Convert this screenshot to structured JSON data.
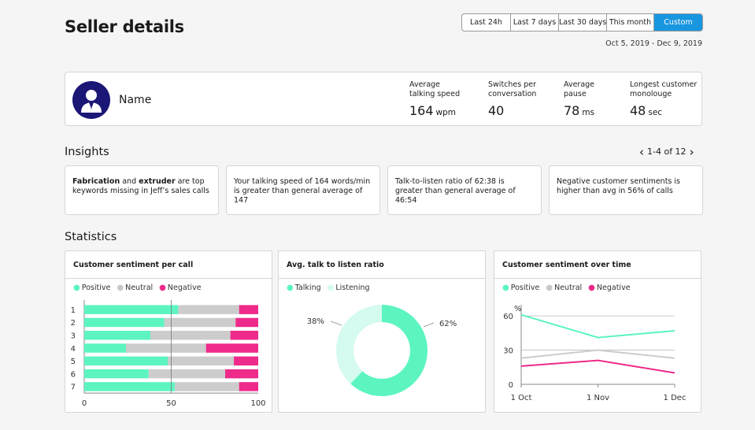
{
  "page_title": "Seller details",
  "ranges": [
    "Last 24h",
    "Last 7 days",
    "Last 30 days",
    "This month",
    "Custom"
  ],
  "active_range": "Custom",
  "date_range": "Oct 5, 2019 - Dec 9, 2019",
  "seller": {
    "name": "Name"
  },
  "metrics": [
    {
      "label1": "Average",
      "label2": "talking speed",
      "value": "164",
      "unit": "wpm"
    },
    {
      "label1": "Switches per",
      "label2": "conversation",
      "value": "40",
      "unit": ""
    },
    {
      "label1": "Average",
      "label2": "pause",
      "value": "78",
      "unit": "ms"
    },
    {
      "label1": "Longest customer",
      "label2": "monolouge",
      "value": "48",
      "unit": "sec"
    }
  ],
  "insights": {
    "title": "Insights",
    "pager": "1-4 of 12",
    "cards": [
      {
        "b1": "Fabrication",
        "t1": " and ",
        "b2": "extruder",
        "t2": " are top keywords missing in Jeff’s sales calls"
      },
      {
        "b1": "",
        "t1": "Your talking speed of 164 words/min is greater than general average of 147",
        "b2": "",
        "t2": ""
      },
      {
        "b1": "",
        "t1": "Talk-to-listen ratio of 62:38 is greater than general average of 46:54",
        "b2": "",
        "t2": ""
      },
      {
        "b1": "",
        "t1": "Negative customer sentiments is higher than avg in 56% of calls",
        "b2": "",
        "t2": ""
      }
    ]
  },
  "statistics_title": "Statistics",
  "colors": {
    "positive": "#5cf5c0",
    "neutral": "#cccccc",
    "negative": "#ee2a8a",
    "listening": "#d5faf0",
    "brand": "#1b1776",
    "accent": "#1996e0"
  },
  "chart_data": [
    {
      "type": "bar",
      "title": "Customer sentiment per call",
      "stacked": true,
      "orientation": "horizontal",
      "categories": [
        "1",
        "2",
        "3",
        "4",
        "5",
        "6",
        "7"
      ],
      "series": [
        {
          "name": "Positive",
          "values": [
            54,
            46,
            38,
            24,
            48,
            37,
            52
          ]
        },
        {
          "name": "Neutral",
          "values": [
            35,
            41,
            46,
            46,
            38,
            44,
            37
          ]
        },
        {
          "name": "Negative",
          "values": [
            11,
            13,
            16,
            30,
            14,
            19,
            11
          ]
        }
      ],
      "xlim": [
        0,
        100
      ],
      "xticks": [
        "0",
        "50",
        "100"
      ],
      "reference_line": 50
    },
    {
      "type": "pie",
      "donut": true,
      "title": "Avg. talk to listen ratio",
      "categories": [
        "Talking",
        "Listening"
      ],
      "values": [
        62,
        38
      ],
      "labels": [
        "62%",
        "38%"
      ]
    },
    {
      "type": "line",
      "title": "Customer sentiment over time",
      "x": [
        "1 Oct",
        "1 Nov",
        "1 Dec"
      ],
      "series": [
        {
          "name": "Positive",
          "values": [
            61,
            41,
            47
          ]
        },
        {
          "name": "Neutral",
          "values": [
            23,
            30,
            23
          ]
        },
        {
          "name": "Negative",
          "values": [
            16,
            21,
            10
          ]
        }
      ],
      "ylabel": "%",
      "yticks": [
        "0",
        "30",
        "60"
      ],
      "ylim": [
        0,
        67
      ]
    }
  ]
}
